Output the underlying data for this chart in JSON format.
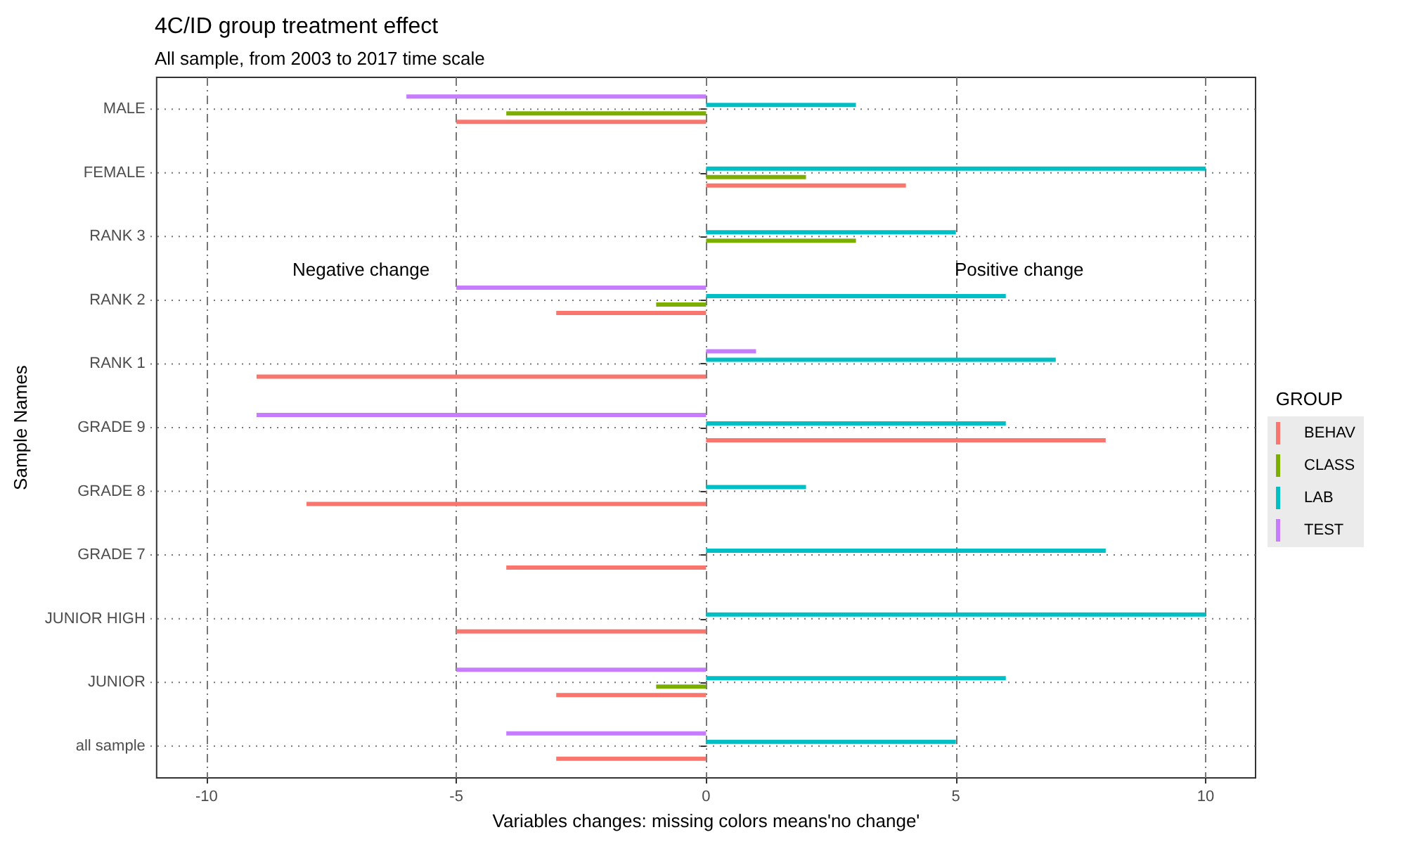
{
  "chart_data": {
    "type": "bar",
    "orientation": "horizontal",
    "title": "4C/ID group treatment effect",
    "subtitle": "All sample, from 2003 to 2017 time scale",
    "xlabel": "Variables changes: missing colors means'no change'",
    "ylabel": "Sample Names",
    "legend_title": "GROUP",
    "legend": "right",
    "grid": true,
    "categories": [
      "MALE",
      "FEMALE",
      "RANK 3",
      "RANK 2",
      "RANK 1",
      "GRADE 9",
      "GRADE 8",
      "GRADE 7",
      "JUNIOR HIGH",
      "JUNIOR",
      "all sample"
    ],
    "xlim": [
      -11,
      11
    ],
    "xticks": [
      -10,
      -5,
      0,
      5,
      10
    ],
    "annotations": [
      "Negative change",
      "Positive change"
    ],
    "series": [
      {
        "name": "BEHAV",
        "color": "#f8766d",
        "values": [
          -5,
          4,
          null,
          -3,
          -9,
          8,
          -8,
          -4,
          -5,
          -3,
          -3
        ]
      },
      {
        "name": "CLASS",
        "color": "#7cae00",
        "values": [
          -4,
          2,
          3,
          -1,
          null,
          null,
          null,
          null,
          null,
          -1,
          null
        ]
      },
      {
        "name": "LAB",
        "color": "#00bfc4",
        "values": [
          3,
          10,
          5,
          6,
          7,
          6,
          2,
          8,
          10,
          6,
          5
        ]
      },
      {
        "name": "TEST",
        "color": "#c77cff",
        "values": [
          -6,
          null,
          null,
          -5,
          1,
          -9,
          null,
          null,
          null,
          -5,
          -4
        ]
      }
    ]
  }
}
